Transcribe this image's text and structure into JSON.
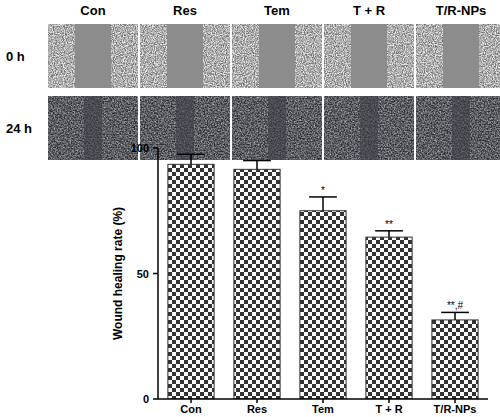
{
  "images": {
    "columns": [
      "Con",
      "Res",
      "Tem",
      "T + R",
      "T/R-NPs"
    ],
    "rows": [
      "0 h",
      "24 h"
    ]
  },
  "chart_data": {
    "type": "bar",
    "categories": [
      "Con",
      "Res",
      "Tem",
      "T + R",
      "T/R-NPs"
    ],
    "values": [
      93.5,
      91.5,
      75,
      64.5,
      31.5
    ],
    "errors": [
      4,
      3.5,
      5.5,
      2.5,
      3
    ],
    "annotations": [
      null,
      null,
      "*",
      "**",
      "**,#"
    ],
    "y_label": "Wound healing rate (%)",
    "color": "#333333",
    "ylim": [
      0,
      100
    ],
    "yticks": [
      0,
      50,
      100
    ],
    "grid": false
  }
}
